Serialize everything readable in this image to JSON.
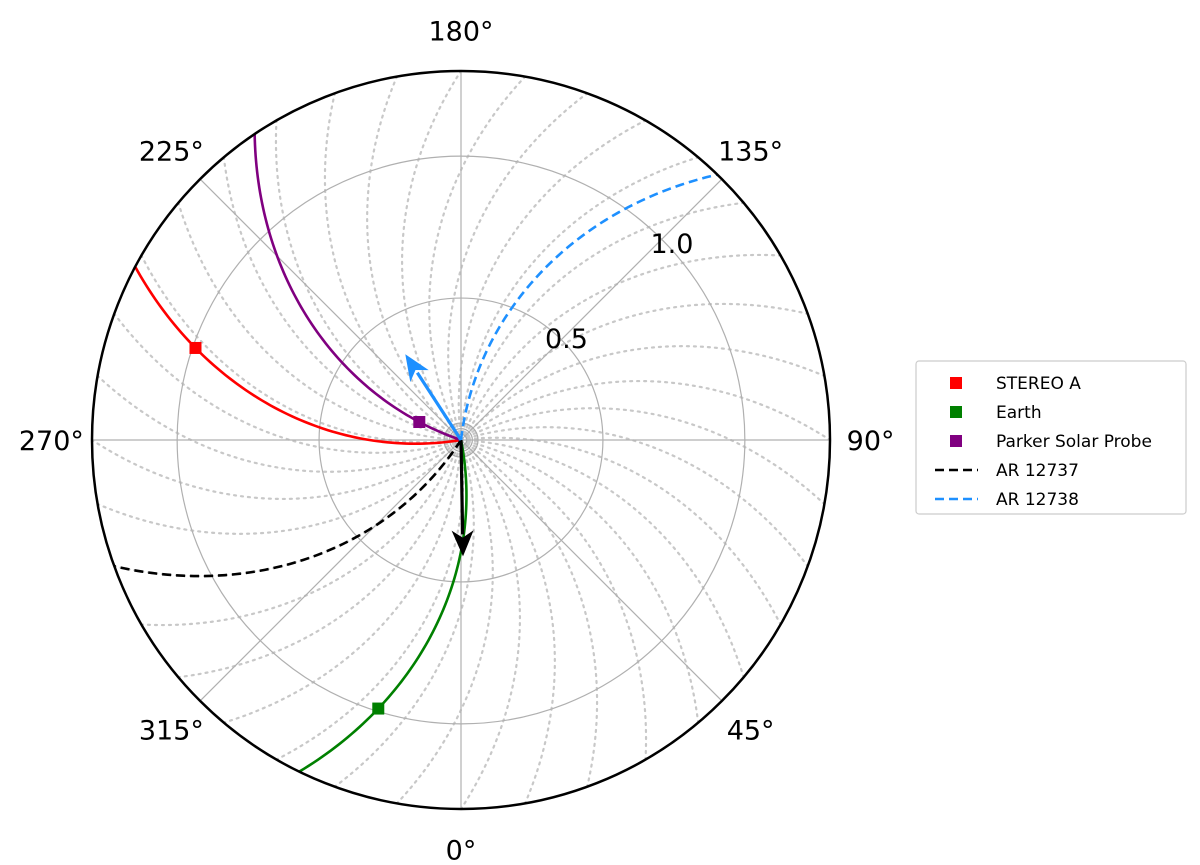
{
  "chart_data": {
    "type": "polar",
    "title": "",
    "angular_ticks": [
      "0°",
      "45°",
      "90°",
      "135°",
      "180°",
      "225°",
      "270°",
      "315°"
    ],
    "angular_tick_values": [
      0,
      45,
      90,
      135,
      180,
      225,
      270,
      315
    ],
    "radial_ticks": [
      "0.5",
      "1.0"
    ],
    "radial_tick_values": [
      0.5,
      1.0
    ],
    "rlim": [
      0,
      1.3
    ],
    "grid": true,
    "background_spirals": {
      "count": 36,
      "spacing_deg": 10,
      "style": "dotted",
      "color": "#c8c8c8"
    },
    "legend": {
      "placement": "right",
      "entries": [
        "STEREO A",
        "Earth",
        "Parker Solar Probe",
        "AR 12737",
        "AR 12738"
      ]
    },
    "series": [
      {
        "name": "STEREO A",
        "color": "#ff0000",
        "style": "solid",
        "marker": "square",
        "marker_position": {
          "angle_deg": 284,
          "r": 0.99
        },
        "spiral_end_angle_deg": 242,
        "spiral_end_r": 1.3
      },
      {
        "name": "Earth",
        "color": "#008000",
        "style": "solid",
        "marker": "square",
        "marker_position": {
          "angle_deg": 0,
          "r": 0.99
        },
        "spiral_end_angle_deg": 334,
        "spiral_end_r": 1.3
      },
      {
        "name": "Parker Solar Probe",
        "color": "#800080",
        "style": "solid",
        "marker": "square",
        "marker_position": {
          "angle_deg": 263,
          "r": 0.16
        },
        "spiral_end_angle_deg": 214,
        "spiral_end_r": 1.3
      },
      {
        "name": "AR 12737",
        "color": "#000000",
        "style": "dashed",
        "marker": "none",
        "spiral_end_angle_deg": 290,
        "spiral_end_r": 1.3,
        "arrow": {
          "angle_deg": 1,
          "r": 0.41
        }
      },
      {
        "name": "AR 12738",
        "color": "#1e90ff",
        "style": "dashed",
        "marker": "none",
        "spiral_end_angle_deg": 136,
        "spiral_end_r": 1.3,
        "arrow": {
          "angle_deg": 213,
          "r": 0.36
        }
      }
    ]
  }
}
